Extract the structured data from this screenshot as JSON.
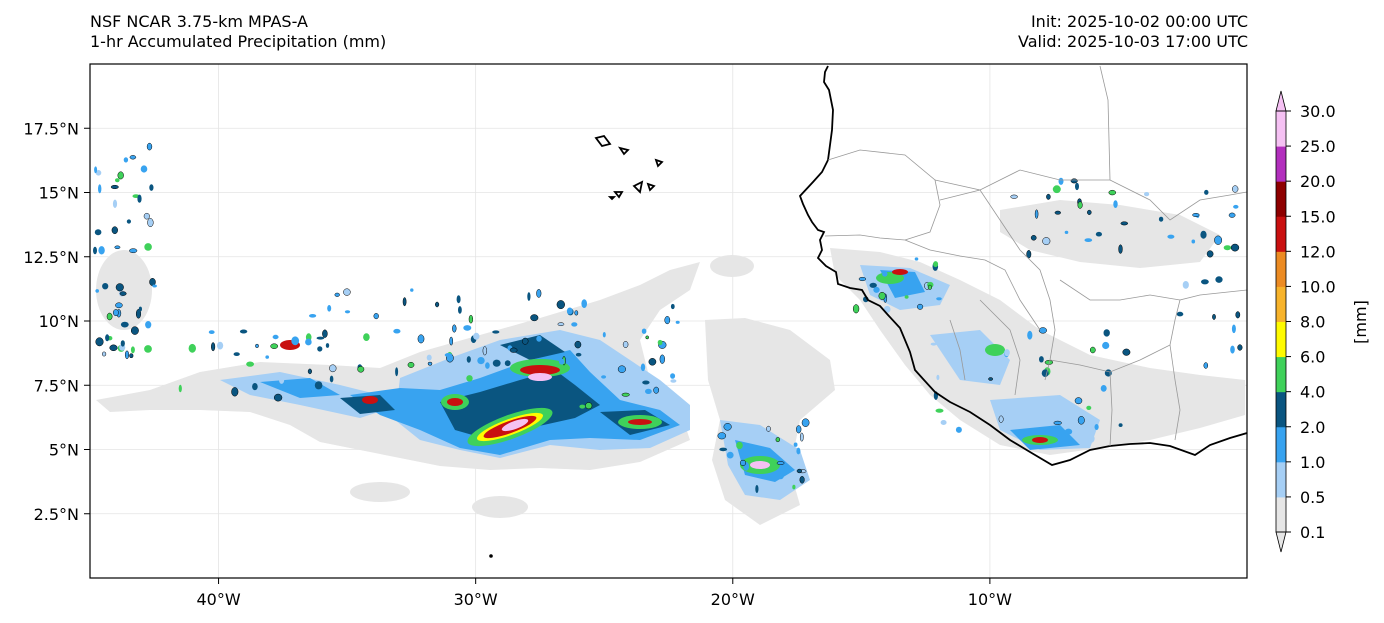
{
  "header": {
    "model_title": "NSF NCAR 3.75-km MPAS-A",
    "field_title": "1-hr Accumulated Precipitation (mm)",
    "init": "Init: 2025-10-02 00:00 UTC",
    "valid": "Valid: 2025-10-03 17:00 UTC"
  },
  "map": {
    "lon_range": [
      -45,
      0
    ],
    "lat_range": [
      0,
      20
    ],
    "lon_ticks": [
      {
        "value": -40,
        "label": "40°W"
      },
      {
        "value": -30,
        "label": "30°W"
      },
      {
        "value": -20,
        "label": "20°W"
      },
      {
        "value": -10,
        "label": "10°W"
      }
    ],
    "lat_ticks": [
      {
        "value": 2.5,
        "label": "2.5°N"
      },
      {
        "value": 5,
        "label": "5°N"
      },
      {
        "value": 7.5,
        "label": "7.5°N"
      },
      {
        "value": 10,
        "label": "10°N"
      },
      {
        "value": 12.5,
        "label": "12.5°N"
      },
      {
        "value": 15,
        "label": "15°N"
      },
      {
        "value": 17.5,
        "label": "17.5°N"
      }
    ]
  },
  "colorbar": {
    "unit_label": "[mm]",
    "levels": [
      {
        "label": "0.1",
        "color": "#e6e6e6"
      },
      {
        "label": "0.5",
        "color": "#a6cff5"
      },
      {
        "label": "1.0",
        "color": "#38a3f0"
      },
      {
        "label": "2.0",
        "color": "#0a5580"
      },
      {
        "label": "4.0",
        "color": "#3fd15a"
      },
      {
        "label": "6.0",
        "color": "#fffb00"
      },
      {
        "label": "8.0",
        "color": "#f7b32b"
      },
      {
        "label": "10.0",
        "color": "#ec8b23"
      },
      {
        "label": "12.0",
        "color": "#c91010"
      },
      {
        "label": "15.0",
        "color": "#8e0000"
      },
      {
        "label": "20.0",
        "color": "#b22fbd"
      },
      {
        "label": "25.0",
        "color": "#f5c1f3"
      },
      {
        "label": "30.0",
        "color": ""
      }
    ]
  }
}
